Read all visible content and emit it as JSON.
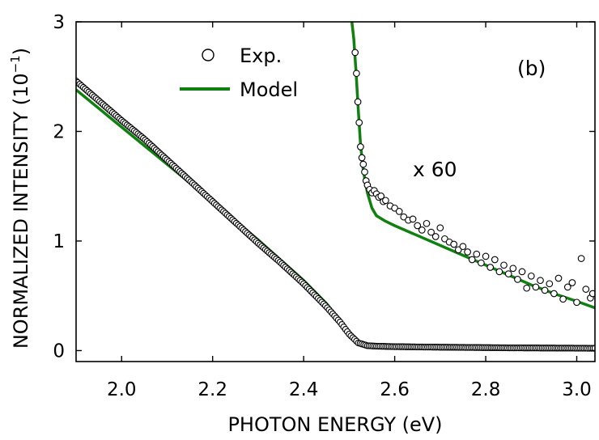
{
  "chart_data": {
    "type": "scatter",
    "title": "",
    "panel_label": "(b)",
    "xlabel": "PHOTON ENERGY (eV)",
    "ylabel_main": "NORMALIZED INTENSITY (10",
    "ylabel_sup": "−1",
    "ylabel_close": ")",
    "xlim": [
      1.9,
      3.04
    ],
    "ylim": [
      -0.1,
      3.0
    ],
    "xticks": [
      "2.0",
      "2.2",
      "2.4",
      "2.6",
      "2.8",
      "3.0"
    ],
    "xtick_values": [
      2.0,
      2.2,
      2.4,
      2.6,
      2.8,
      3.0
    ],
    "yticks": [
      "0",
      "1",
      "2",
      "3"
    ],
    "ytick_values": [
      0,
      1,
      2,
      3
    ],
    "legend": {
      "position": "top-left",
      "entries": [
        {
          "label": "Exp.",
          "marker": "open-circle"
        },
        {
          "label": "Model",
          "marker": "line"
        }
      ]
    },
    "scale_annotation": "x 60",
    "scale_factor": 60,
    "colors": {
      "model": "#108010",
      "exp_edge": "#000000",
      "exp_face": "#ffffff"
    },
    "series": [
      {
        "name": "Exp.",
        "kind": "scatter",
        "x": [
          1.9,
          1.95,
          2.0,
          2.05,
          2.1,
          2.15,
          2.2,
          2.25,
          2.3,
          2.35,
          2.4,
          2.45,
          2.48,
          2.5,
          2.52,
          2.54,
          2.56,
          2.6,
          2.65,
          2.7,
          2.75,
          2.8,
          2.85,
          2.9,
          2.95,
          3.0,
          3.04
        ],
        "y": [
          2.46,
          2.28,
          2.1,
          1.93,
          1.74,
          1.55,
          1.36,
          1.17,
          0.98,
          0.8,
          0.61,
          0.4,
          0.26,
          0.15,
          0.07,
          0.045,
          0.04,
          0.036,
          0.033,
          0.031,
          0.029,
          0.027,
          0.025,
          0.024,
          0.023,
          0.022,
          0.021
        ]
      },
      {
        "name": "Model",
        "kind": "line",
        "x": [
          1.9,
          2.0,
          2.1,
          2.2,
          2.3,
          2.4,
          2.45,
          2.48,
          2.5,
          2.52,
          2.54,
          2.56,
          2.6,
          2.7,
          2.8,
          2.9,
          3.0,
          3.04
        ],
        "y": [
          2.38,
          2.04,
          1.7,
          1.36,
          1.01,
          0.64,
          0.43,
          0.27,
          0.16,
          0.08,
          0.05,
          0.045,
          0.042,
          0.038,
          0.034,
          0.03,
          0.027,
          0.025
        ]
      },
      {
        "name": "Exp. x 60",
        "kind": "scatter",
        "x": [
          2.513,
          2.516,
          2.519,
          2.522,
          2.525,
          2.528,
          2.531,
          2.534,
          2.537,
          2.54,
          2.545,
          2.55,
          2.555,
          2.56,
          2.565,
          2.57,
          2.575,
          2.58,
          2.59,
          2.6,
          2.61,
          2.62,
          2.63,
          2.64,
          2.65,
          2.66,
          2.67,
          2.68,
          2.69,
          2.7,
          2.71,
          2.72,
          2.73,
          2.74,
          2.75,
          2.76,
          2.77,
          2.78,
          2.79,
          2.8,
          2.81,
          2.82,
          2.83,
          2.84,
          2.85,
          2.86,
          2.87,
          2.88,
          2.89,
          2.9,
          2.91,
          2.92,
          2.93,
          2.94,
          2.95,
          2.96,
          2.97,
          2.98,
          2.99,
          3.0,
          3.01,
          3.02,
          3.03,
          3.035
        ],
        "y": [
          2.72,
          2.53,
          2.27,
          2.08,
          1.86,
          1.76,
          1.7,
          1.63,
          1.55,
          1.51,
          1.47,
          1.44,
          1.46,
          1.43,
          1.4,
          1.41,
          1.36,
          1.37,
          1.32,
          1.3,
          1.27,
          1.22,
          1.19,
          1.2,
          1.14,
          1.1,
          1.16,
          1.08,
          1.04,
          1.12,
          1.02,
          0.99,
          0.97,
          0.92,
          0.95,
          0.9,
          0.83,
          0.88,
          0.8,
          0.86,
          0.76,
          0.83,
          0.72,
          0.78,
          0.7,
          0.75,
          0.65,
          0.72,
          0.57,
          0.68,
          0.58,
          0.64,
          0.55,
          0.61,
          0.52,
          0.66,
          0.47,
          0.58,
          0.62,
          0.44,
          0.84,
          0.56,
          0.48,
          0.52
        ]
      },
      {
        "name": "Model x 60",
        "kind": "line",
        "x": [
          2.506,
          2.51,
          2.515,
          2.52,
          2.525,
          2.53,
          2.535,
          2.54,
          2.55,
          2.56,
          2.58,
          2.6,
          2.65,
          2.7,
          2.75,
          2.8,
          2.85,
          2.9,
          2.95,
          3.0,
          3.04
        ],
        "y": [
          3.0,
          2.85,
          2.55,
          2.2,
          1.88,
          1.68,
          1.55,
          1.44,
          1.3,
          1.23,
          1.18,
          1.14,
          1.05,
          0.96,
          0.87,
          0.78,
          0.69,
          0.6,
          0.52,
          0.45,
          0.39
        ]
      }
    ]
  }
}
